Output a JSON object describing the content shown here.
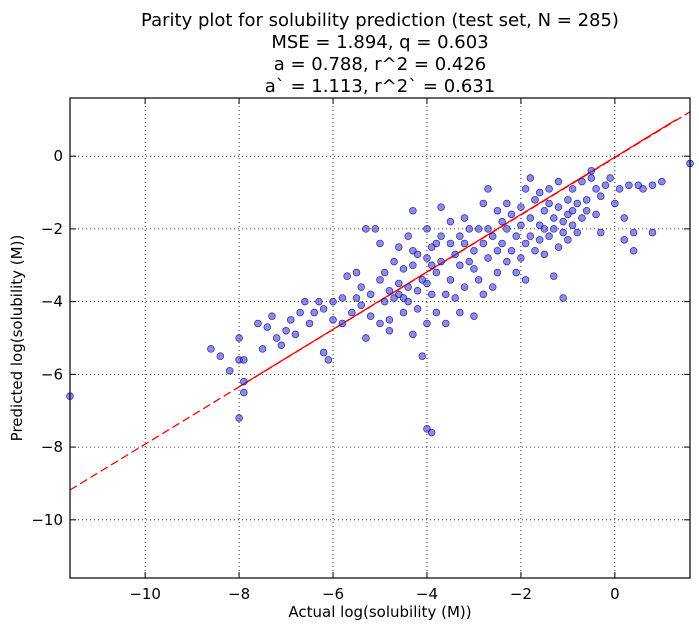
{
  "chart_data": {
    "type": "scatter",
    "title_lines": [
      "Parity plot for solubility prediction (test set, N = 285)",
      "MSE = 1.894, q = 0.603",
      "a = 0.788, r^2 = 0.426",
      "a` = 1.113, r^2` = 0.631"
    ],
    "xlabel": "Actual log(solubility (M))",
    "ylabel": "Predicted log(solubility (M))",
    "xlim": [
      -11.6,
      1.6
    ],
    "ylim": [
      -11.6,
      1.6
    ],
    "grid": true,
    "x_ticks": [
      -10,
      -8,
      -6,
      -4,
      -2,
      0
    ],
    "y_ticks": [
      -10,
      -8,
      -6,
      -4,
      -2,
      0
    ],
    "x_tick_labels": [
      "−10",
      "−8",
      "−6",
      "−4",
      "−2",
      "0"
    ],
    "y_tick_labels": [
      "−10",
      "−8",
      "−6",
      "−4",
      "−2",
      "0"
    ],
    "point_color": "#4040d8",
    "point_edge_color": "#000080",
    "fit_line_color": "#ff0000",
    "fit_lines": [
      {
        "style": "dashed",
        "x": [
          -11.6,
          1.6
        ],
        "y": [
          -9.18,
          1.22
        ]
      },
      {
        "style": "solid",
        "x": [
          -8.0,
          1.3
        ],
        "y": [
          -6.34,
          1.0
        ]
      }
    ],
    "points": [
      [
        -11.6,
        -6.6
      ],
      [
        -8.6,
        -5.3
      ],
      [
        -8.4,
        -5.5
      ],
      [
        -8.2,
        -5.9
      ],
      [
        -8.0,
        -5.0
      ],
      [
        -8.0,
        -5.6
      ],
      [
        -7.9,
        -5.6
      ],
      [
        -7.9,
        -6.2
      ],
      [
        -7.9,
        -6.5
      ],
      [
        -8.0,
        -7.2
      ],
      [
        -7.6,
        -4.6
      ],
      [
        -7.5,
        -5.3
      ],
      [
        -7.4,
        -4.7
      ],
      [
        -7.3,
        -4.4
      ],
      [
        -7.2,
        -5.0
      ],
      [
        -7.1,
        -5.2
      ],
      [
        -7.0,
        -4.8
      ],
      [
        -6.9,
        -4.5
      ],
      [
        -6.8,
        -4.9
      ],
      [
        -6.7,
        -4.3
      ],
      [
        -6.6,
        -4.0
      ],
      [
        -6.5,
        -4.6
      ],
      [
        -6.4,
        -4.3
      ],
      [
        -6.3,
        -4.0
      ],
      [
        -6.2,
        -5.4
      ],
      [
        -6.2,
        -4.2
      ],
      [
        -6.1,
        -5.6
      ],
      [
        -6.0,
        -4.5
      ],
      [
        -6.0,
        -4.0
      ],
      [
        -5.8,
        -3.9
      ],
      [
        -5.8,
        -4.6
      ],
      [
        -5.7,
        -3.3
      ],
      [
        -5.6,
        -4.3
      ],
      [
        -5.5,
        -3.9
      ],
      [
        -5.5,
        -3.2
      ],
      [
        -5.4,
        -4.1
      ],
      [
        -5.4,
        -3.6
      ],
      [
        -5.3,
        -5.0
      ],
      [
        -5.3,
        -2.0
      ],
      [
        -5.2,
        -3.8
      ],
      [
        -5.2,
        -4.4
      ],
      [
        -5.1,
        -2.0
      ],
      [
        -5.0,
        -3.4
      ],
      [
        -5.0,
        -2.4
      ],
      [
        -5.0,
        -4.6
      ],
      [
        -4.9,
        -3.2
      ],
      [
        -4.9,
        -4.0
      ],
      [
        -4.8,
        -4.5
      ],
      [
        -4.8,
        -3.7
      ],
      [
        -4.8,
        -4.8
      ],
      [
        -4.7,
        -3.9
      ],
      [
        -4.7,
        -2.9
      ],
      [
        -4.6,
        -2.5
      ],
      [
        -4.6,
        -3.5
      ],
      [
        -4.6,
        -3.8
      ],
      [
        -4.5,
        -4.3
      ],
      [
        -4.5,
        -3.1
      ],
      [
        -4.5,
        -3.9
      ],
      [
        -4.4,
        -2.2
      ],
      [
        -4.4,
        -4.0
      ],
      [
        -4.4,
        -3.6
      ],
      [
        -4.3,
        -1.5
      ],
      [
        -4.3,
        -3.0
      ],
      [
        -4.3,
        -2.6
      ],
      [
        -4.3,
        -4.9
      ],
      [
        -4.2,
        -3.7
      ],
      [
        -4.2,
        -2.7
      ],
      [
        -4.2,
        -4.2
      ],
      [
        -4.1,
        -3.4
      ],
      [
        -4.1,
        -5.5
      ],
      [
        -4.0,
        -2.0
      ],
      [
        -4.0,
        -2.8
      ],
      [
        -4.0,
        -3.5
      ],
      [
        -4.0,
        -4.6
      ],
      [
        -4.0,
        -7.5
      ],
      [
        -3.9,
        -2.5
      ],
      [
        -3.9,
        -3.0
      ],
      [
        -3.9,
        -3.8
      ],
      [
        -3.9,
        -7.6
      ],
      [
        -3.8,
        -4.3
      ],
      [
        -3.8,
        -2.4
      ],
      [
        -3.8,
        -3.2
      ],
      [
        -3.7,
        -1.4
      ],
      [
        -3.7,
        -2.2
      ],
      [
        -3.7,
        -2.9
      ],
      [
        -3.6,
        -3.8
      ],
      [
        -3.6,
        -4.6
      ],
      [
        -3.5,
        -2.4
      ],
      [
        -3.5,
        -1.8
      ],
      [
        -3.5,
        -3.4
      ],
      [
        -3.4,
        -2.7
      ],
      [
        -3.4,
        -3.9
      ],
      [
        -3.3,
        -2.2
      ],
      [
        -3.3,
        -4.3
      ],
      [
        -3.3,
        -3.0
      ],
      [
        -3.2,
        -2.4
      ],
      [
        -3.2,
        -1.7
      ],
      [
        -3.2,
        -3.6
      ],
      [
        -3.1,
        -2.0
      ],
      [
        -3.1,
        -2.9
      ],
      [
        -3.0,
        -2.6
      ],
      [
        -3.0,
        -4.4
      ],
      [
        -3.0,
        -3.1
      ],
      [
        -2.9,
        -2.0
      ],
      [
        -2.9,
        -3.4
      ],
      [
        -2.8,
        -1.3
      ],
      [
        -2.8,
        -2.4
      ],
      [
        -2.8,
        -3.8
      ],
      [
        -2.7,
        -2.8
      ],
      [
        -2.7,
        -0.9
      ],
      [
        -2.7,
        -2.0
      ],
      [
        -2.6,
        -3.6
      ],
      [
        -2.6,
        -2.2
      ],
      [
        -2.5,
        -1.5
      ],
      [
        -2.5,
        -2.6
      ],
      [
        -2.5,
        -3.2
      ],
      [
        -2.4,
        -1.8
      ],
      [
        -2.4,
        -2.4
      ],
      [
        -2.3,
        -2.0
      ],
      [
        -2.3,
        -1.3
      ],
      [
        -2.3,
        -2.9
      ],
      [
        -2.2,
        -2.6
      ],
      [
        -2.2,
        -1.6
      ],
      [
        -2.1,
        -2.2
      ],
      [
        -2.1,
        -3.2
      ],
      [
        -2.0,
        -1.4
      ],
      [
        -2.0,
        -2.8
      ],
      [
        -2.0,
        -1.9
      ],
      [
        -1.9,
        -2.4
      ],
      [
        -1.9,
        -0.9
      ],
      [
        -1.9,
        -3.4
      ],
      [
        -1.8,
        -1.7
      ],
      [
        -1.8,
        -2.2
      ],
      [
        -1.8,
        -0.6
      ],
      [
        -1.7,
        -1.2
      ],
      [
        -1.7,
        -2.6
      ],
      [
        -1.6,
        -1.9
      ],
      [
        -1.6,
        -2.3
      ],
      [
        -1.6,
        -1.0
      ],
      [
        -1.5,
        -1.5
      ],
      [
        -1.5,
        -2.0
      ],
      [
        -1.5,
        -2.7
      ],
      [
        -1.4,
        -1.3
      ],
      [
        -1.4,
        -0.9
      ],
      [
        -1.4,
        -2.2
      ],
      [
        -1.3,
        -1.7
      ],
      [
        -1.3,
        -2.0
      ],
      [
        -1.3,
        -3.3
      ],
      [
        -1.2,
        -1.4
      ],
      [
        -1.2,
        -2.5
      ],
      [
        -1.2,
        -0.7
      ],
      [
        -1.1,
        -1.8
      ],
      [
        -1.1,
        -2.1
      ],
      [
        -1.1,
        -3.9
      ],
      [
        -1.0,
        -1.2
      ],
      [
        -1.0,
        -1.6
      ],
      [
        -1.0,
        -2.3
      ],
      [
        -0.9,
        -1.5
      ],
      [
        -0.9,
        -0.9
      ],
      [
        -0.9,
        -1.9
      ],
      [
        -0.8,
        -1.3
      ],
      [
        -0.8,
        -2.1
      ],
      [
        -0.7,
        -0.7
      ],
      [
        -0.7,
        -1.7
      ],
      [
        -0.6,
        -1.2
      ],
      [
        -0.6,
        -1.5
      ],
      [
        -0.5,
        -0.4
      ],
      [
        -0.5,
        -0.6
      ],
      [
        -0.4,
        -0.9
      ],
      [
        -0.4,
        -1.6
      ],
      [
        -0.3,
        -2.1
      ],
      [
        -0.3,
        -1.1
      ],
      [
        -0.2,
        -0.8
      ],
      [
        -0.1,
        -0.6
      ],
      [
        0.0,
        -1.3
      ],
      [
        0.1,
        -0.9
      ],
      [
        0.2,
        -2.3
      ],
      [
        0.2,
        -1.7
      ],
      [
        0.3,
        -0.8
      ],
      [
        0.4,
        -2.1
      ],
      [
        0.4,
        -2.6
      ],
      [
        0.5,
        -0.8
      ],
      [
        0.6,
        -0.9
      ],
      [
        0.8,
        -2.1
      ],
      [
        0.8,
        -0.8
      ],
      [
        1.0,
        -0.7
      ],
      [
        1.6,
        -0.2
      ]
    ]
  }
}
